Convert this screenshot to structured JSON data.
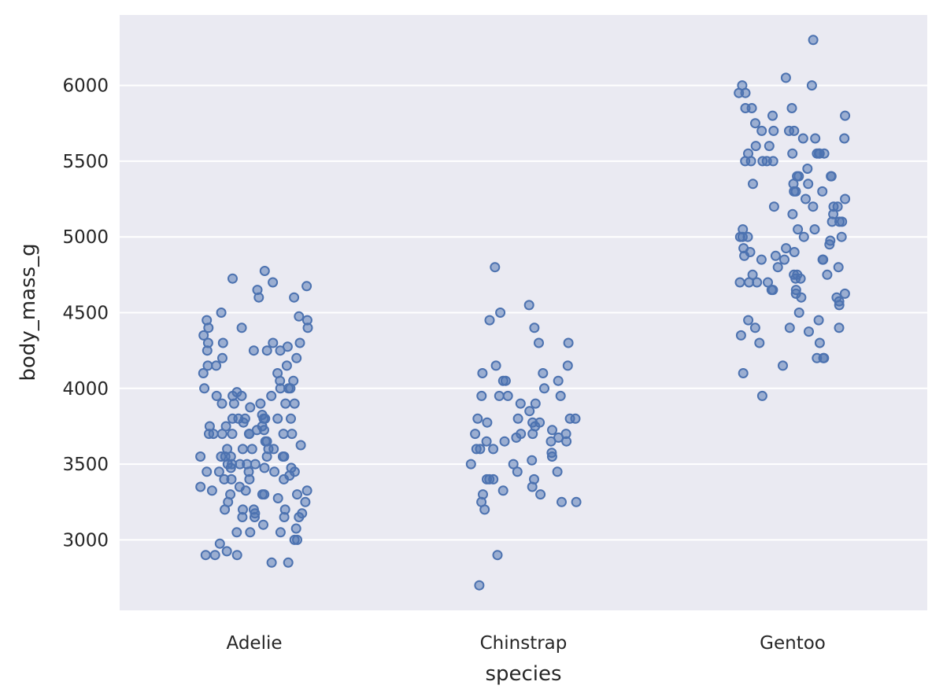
{
  "chart_data": {
    "type": "scatter",
    "style": "strip",
    "xlabel": "species",
    "ylabel": "body_mass_g",
    "categories": [
      "Adelie",
      "Chinstrap",
      "Gentoo"
    ],
    "ylim": [
      2535,
      6465
    ],
    "yticks": [
      "3000",
      "3500",
      "4000",
      "4500",
      "5000",
      "5500",
      "6000"
    ],
    "grid": true,
    "colors": {
      "background": "#eaeaf2",
      "grid": "#ffffff",
      "marker": "#4c72b0",
      "text": "#262626"
    },
    "series": [
      {
        "category": "Adelie",
        "values": [
          4775,
          4725,
          4600,
          4675,
          4700,
          4650,
          4600,
          4475,
          4400,
          4400,
          4300,
          4500,
          4450,
          4450,
          4400,
          4350,
          4300,
          4300,
          4300,
          4275,
          4250,
          4250,
          4250,
          4250,
          4200,
          4200,
          4150,
          4150,
          4150,
          4100,
          4100,
          4050,
          4050,
          4000,
          4000,
          4000,
          4000,
          3975,
          3950,
          3950,
          3950,
          3950,
          3900,
          3900,
          3900,
          3900,
          3900,
          3875,
          3825,
          3800,
          3800,
          3800,
          3800,
          3800,
          3800,
          3800,
          3775,
          3750,
          3750,
          3750,
          3725,
          3725,
          3700,
          3700,
          3700,
          3700,
          3700,
          3700,
          3700,
          3700,
          3650,
          3650,
          3625,
          3600,
          3600,
          3600,
          3600,
          3600,
          3550,
          3550,
          3550,
          3550,
          3550,
          3550,
          3550,
          3500,
          3500,
          3500,
          3500,
          3500,
          3475,
          3475,
          3475,
          3450,
          3450,
          3450,
          3450,
          3450,
          3425,
          3400,
          3400,
          3400,
          3400,
          3350,
          3350,
          3325,
          3325,
          3325,
          3300,
          3300,
          3300,
          3300,
          3275,
          3250,
          3250,
          3200,
          3200,
          3200,
          3200,
          3175,
          3175,
          3150,
          3150,
          3150,
          3150,
          3100,
          3075,
          3050,
          3050,
          3050,
          3000,
          3000,
          2975,
          2925,
          2900,
          2900,
          2900,
          2850,
          2850
        ]
      },
      {
        "category": "Chinstrap",
        "values": [
          4800,
          4550,
          4500,
          4450,
          4400,
          4300,
          4300,
          4150,
          4150,
          4100,
          4100,
          4050,
          4050,
          4050,
          4000,
          3950,
          3950,
          3950,
          3950,
          3900,
          3900,
          3850,
          3800,
          3800,
          3800,
          3800,
          3775,
          3775,
          3775,
          3750,
          3725,
          3700,
          3700,
          3700,
          3700,
          3675,
          3675,
          3650,
          3650,
          3650,
          3650,
          3600,
          3600,
          3600,
          3575,
          3550,
          3525,
          3500,
          3500,
          3450,
          3450,
          3400,
          3400,
          3400,
          3400,
          3350,
          3325,
          3300,
          3300,
          3250,
          3250,
          3250,
          3200,
          2900,
          2700
        ]
      },
      {
        "category": "Gentoo",
        "values": [
          6300,
          6050,
          6000,
          6000,
          5950,
          5950,
          5850,
          5850,
          5850,
          5800,
          5800,
          5750,
          5700,
          5700,
          5700,
          5700,
          5650,
          5650,
          5650,
          5600,
          5600,
          5550,
          5550,
          5550,
          5550,
          5550,
          5550,
          5500,
          5500,
          5500,
          5500,
          5500,
          5450,
          5400,
          5400,
          5400,
          5400,
          5350,
          5350,
          5350,
          5300,
          5300,
          5300,
          5250,
          5250,
          5200,
          5200,
          5200,
          5200,
          5150,
          5150,
          5100,
          5100,
          5100,
          5050,
          5050,
          5050,
          5000,
          5000,
          5000,
          5000,
          5000,
          4975,
          4950,
          4925,
          4925,
          4900,
          4900,
          4875,
          4875,
          4850,
          4850,
          4850,
          4850,
          4800,
          4800,
          4750,
          4750,
          4750,
          4750,
          4725,
          4725,
          4700,
          4700,
          4700,
          4700,
          4650,
          4650,
          4650,
          4625,
          4625,
          4600,
          4600,
          4575,
          4550,
          4500,
          4450,
          4450,
          4400,
          4400,
          4400,
          4375,
          4350,
          4300,
          4300,
          4200,
          4200,
          4200,
          4150,
          4100,
          3950
        ]
      }
    ]
  }
}
